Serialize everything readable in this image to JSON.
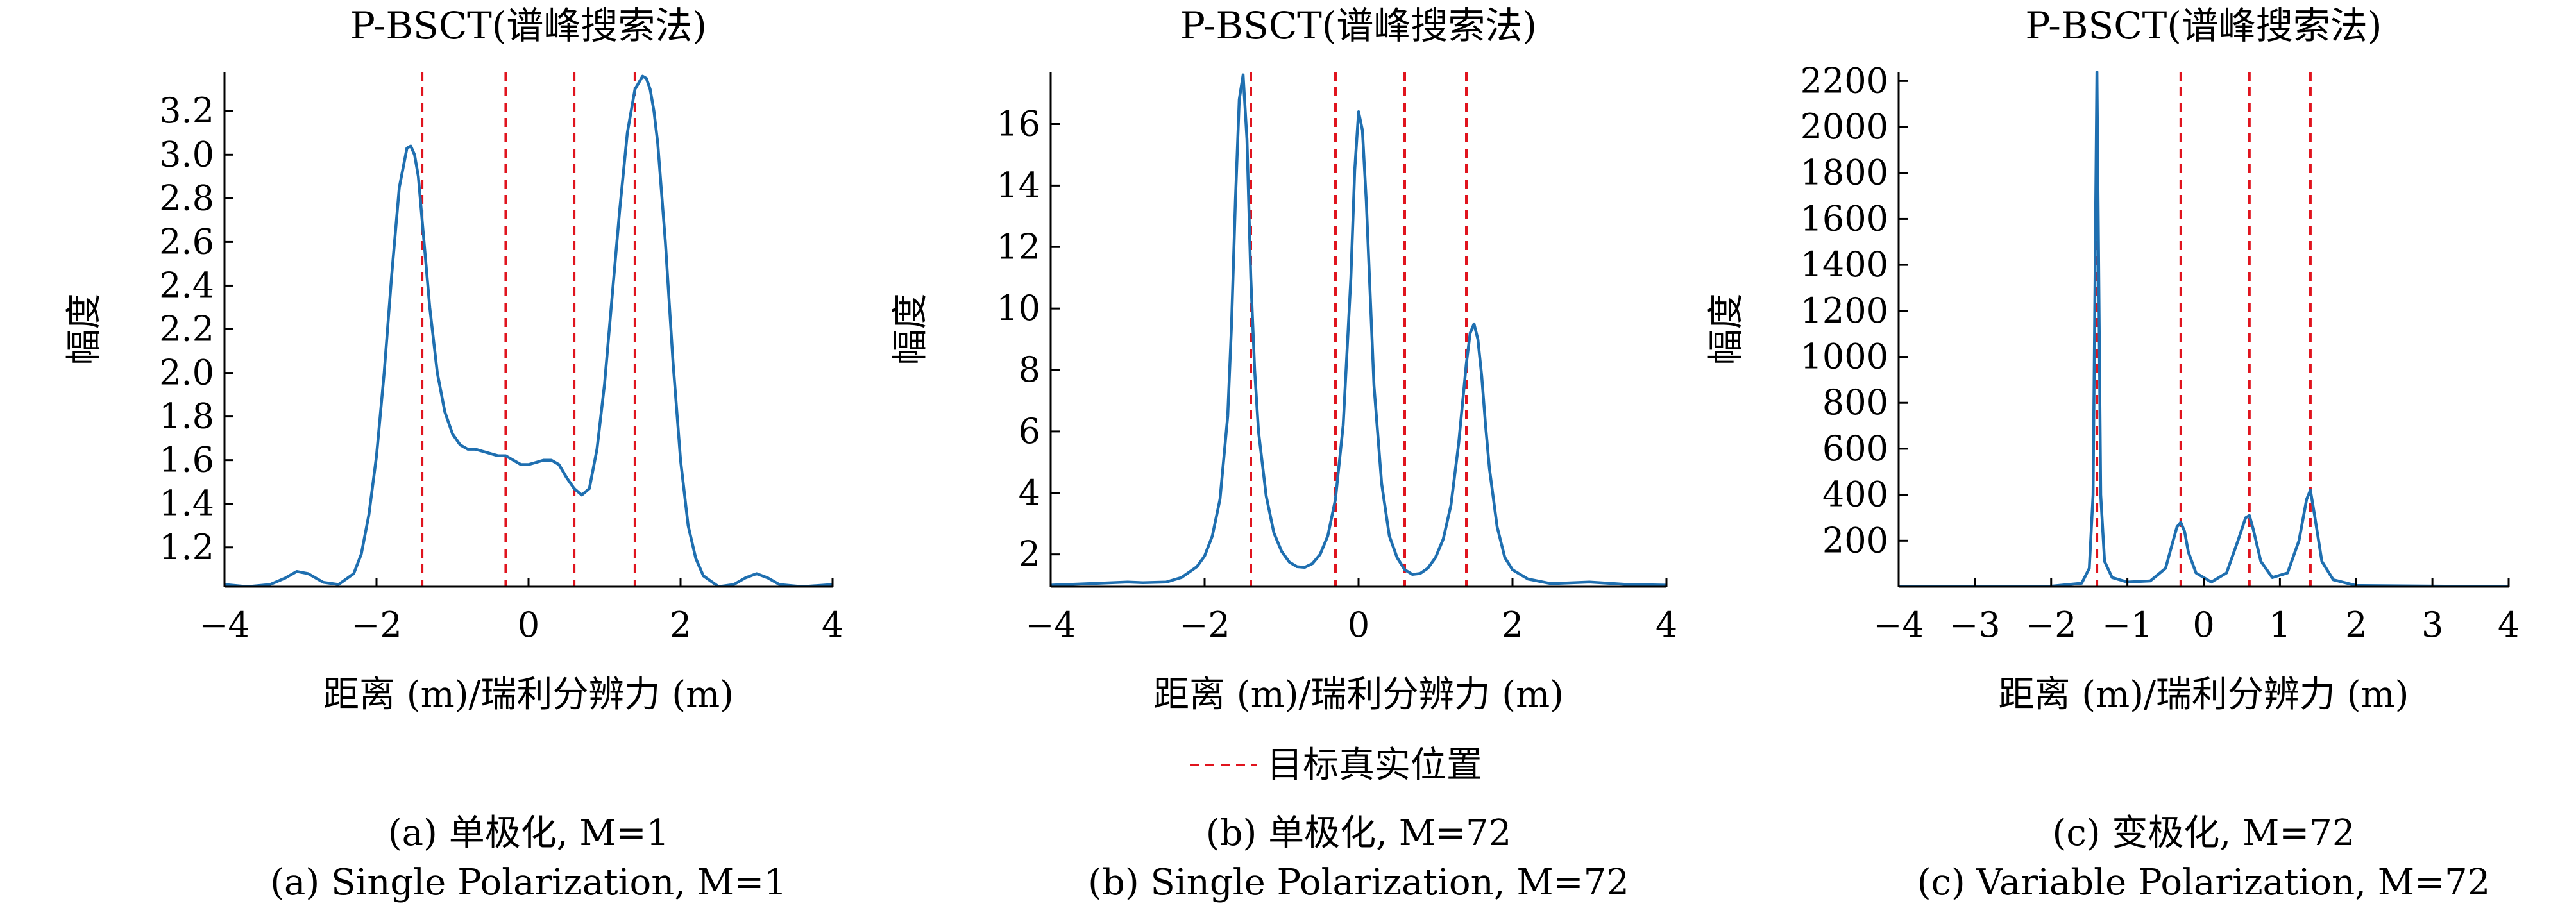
{
  "legend": {
    "label": "目标真实位置",
    "color": "#e0141e"
  },
  "colors": {
    "curve": "#1f6fb0",
    "truth": "#e0141e",
    "axis": "#000000"
  },
  "chart_data": [
    {
      "type": "line",
      "title": "P-BSCT(谱峰搜索法)",
      "xlabel": "距离 (m)/瑞利分辨力 (m)",
      "ylabel": "幅度",
      "xlim": [
        -4,
        4
      ],
      "ylim": [
        1.02,
        3.38
      ],
      "xticks": [
        "−4",
        "−2",
        "0",
        "2",
        "4"
      ],
      "xtick_values": [
        -4,
        -2,
        0,
        2,
        4
      ],
      "yticks": [
        "1.2",
        "1.4",
        "1.6",
        "1.8",
        "2.0",
        "2.2",
        "2.4",
        "2.6",
        "2.8",
        "3.0",
        "3.2"
      ],
      "ytick_values": [
        1.2,
        1.4,
        1.6,
        1.8,
        2.0,
        2.2,
        2.4,
        2.6,
        2.8,
        3.0,
        3.2
      ],
      "caption_cn": "(a) 单极化, M=1",
      "caption_en": "(a) Single Polarization, M=1",
      "target_positions": [
        -1.4,
        -0.3,
        0.6,
        1.4
      ],
      "series": [
        {
          "x": [
            -4,
            -3.7,
            -3.4,
            -3.2,
            -3.05,
            -2.9,
            -2.7,
            -2.5,
            -2.3,
            -2.2,
            -2.1,
            -2.0,
            -1.9,
            -1.8,
            -1.7,
            -1.6,
            -1.55,
            -1.5,
            -1.45,
            -1.4,
            -1.3,
            -1.2,
            -1.1,
            -1.0,
            -0.9,
            -0.8,
            -0.7,
            -0.6,
            -0.5,
            -0.4,
            -0.3,
            -0.2,
            -0.1,
            0,
            0.1,
            0.2,
            0.3,
            0.4,
            0.5,
            0.6,
            0.7,
            0.8,
            0.9,
            1.0,
            1.1,
            1.2,
            1.3,
            1.4,
            1.5,
            1.55,
            1.6,
            1.65,
            1.7,
            1.8,
            1.9,
            2.0,
            2.1,
            2.2,
            2.3,
            2.5,
            2.7,
            2.85,
            3.0,
            3.15,
            3.3,
            3.6,
            4.0
          ],
          "y": [
            1.03,
            1.02,
            1.03,
            1.06,
            1.09,
            1.08,
            1.04,
            1.03,
            1.08,
            1.17,
            1.35,
            1.62,
            2.0,
            2.45,
            2.85,
            3.03,
            3.04,
            3.0,
            2.9,
            2.7,
            2.3,
            2.0,
            1.82,
            1.72,
            1.67,
            1.65,
            1.65,
            1.64,
            1.63,
            1.62,
            1.62,
            1.6,
            1.58,
            1.58,
            1.59,
            1.6,
            1.6,
            1.58,
            1.52,
            1.47,
            1.44,
            1.47,
            1.65,
            1.95,
            2.35,
            2.75,
            3.1,
            3.3,
            3.36,
            3.35,
            3.3,
            3.2,
            3.05,
            2.6,
            2.05,
            1.6,
            1.3,
            1.15,
            1.07,
            1.02,
            1.03,
            1.06,
            1.08,
            1.06,
            1.03,
            1.02,
            1.03
          ]
        }
      ]
    },
    {
      "type": "line",
      "title": "P-BSCT(谱峰搜索法)",
      "xlabel": "距离 (m)/瑞利分辨力 (m)",
      "ylabel": "幅度",
      "xlim": [
        -4,
        4
      ],
      "ylim": [
        0.95,
        17.7
      ],
      "xticks": [
        "−4",
        "−2",
        "0",
        "2",
        "4"
      ],
      "xtick_values": [
        -4,
        -2,
        0,
        2,
        4
      ],
      "yticks": [
        "2",
        "4",
        "6",
        "8",
        "10",
        "12",
        "14",
        "16"
      ],
      "ytick_values": [
        2,
        4,
        6,
        8,
        10,
        12,
        14,
        16
      ],
      "caption_cn": "(b) 单极化, M=72",
      "caption_en": "(b) Single Polarization, M=72",
      "target_positions": [
        -1.4,
        -0.3,
        0.6,
        1.4
      ],
      "series": [
        {
          "x": [
            -4,
            -3.5,
            -3.0,
            -2.8,
            -2.5,
            -2.3,
            -2.1,
            -2.0,
            -1.9,
            -1.8,
            -1.7,
            -1.65,
            -1.6,
            -1.55,
            -1.5,
            -1.45,
            -1.4,
            -1.35,
            -1.3,
            -1.2,
            -1.1,
            -1.0,
            -0.9,
            -0.8,
            -0.7,
            -0.6,
            -0.5,
            -0.4,
            -0.3,
            -0.2,
            -0.1,
            -0.05,
            0,
            0.05,
            0.1,
            0.15,
            0.2,
            0.3,
            0.4,
            0.5,
            0.6,
            0.7,
            0.8,
            0.9,
            1.0,
            1.1,
            1.2,
            1.3,
            1.4,
            1.45,
            1.5,
            1.55,
            1.6,
            1.65,
            1.7,
            1.8,
            1.9,
            2.0,
            2.2,
            2.5,
            3.0,
            3.5,
            4.0
          ],
          "y": [
            1.0,
            1.05,
            1.1,
            1.08,
            1.1,
            1.25,
            1.6,
            1.95,
            2.6,
            3.8,
            6.5,
            9.5,
            13.5,
            16.8,
            17.6,
            15.5,
            11.0,
            8.0,
            6.0,
            3.9,
            2.7,
            2.1,
            1.75,
            1.6,
            1.58,
            1.7,
            2.0,
            2.6,
            3.8,
            6.2,
            11.0,
            14.5,
            16.4,
            15.8,
            13.5,
            10.5,
            7.5,
            4.3,
            2.6,
            1.9,
            1.5,
            1.35,
            1.38,
            1.55,
            1.9,
            2.5,
            3.6,
            5.6,
            8.2,
            9.2,
            9.5,
            9.0,
            7.8,
            6.2,
            4.8,
            2.9,
            1.9,
            1.5,
            1.2,
            1.05,
            1.1,
            1.02,
            1.0
          ]
        }
      ]
    },
    {
      "type": "line",
      "title": "P-BSCT(谱峰搜索法)",
      "xlabel": "距离 (m)/瑞利分辨力 (m)",
      "ylabel": "幅度",
      "xlim": [
        -4,
        4
      ],
      "ylim": [
        0,
        2240
      ],
      "xticks": [
        "−4",
        "−3",
        "−2",
        "−1",
        "0",
        "1",
        "2",
        "3",
        "4"
      ],
      "xtick_values": [
        -4,
        -3,
        -2,
        -1,
        0,
        1,
        2,
        3,
        4
      ],
      "yticks": [
        "200",
        "400",
        "600",
        "800",
        "1000",
        "1200",
        "1400",
        "1600",
        "1800",
        "2000",
        "2200"
      ],
      "ytick_values": [
        200,
        400,
        600,
        800,
        1000,
        1200,
        1400,
        1600,
        1800,
        2000,
        2200
      ],
      "caption_cn": "(c) 变极化, M=72",
      "caption_en": "(c) Variable Polarization, M=72",
      "target_positions": [
        -1.4,
        -0.3,
        0.6,
        1.4
      ],
      "series": [
        {
          "x": [
            -4,
            -2.0,
            -1.6,
            -1.5,
            -1.45,
            -1.42,
            -1.4,
            -1.38,
            -1.35,
            -1.3,
            -1.2,
            -1.0,
            -0.7,
            -0.5,
            -0.4,
            -0.35,
            -0.3,
            -0.25,
            -0.2,
            -0.1,
            0.1,
            0.3,
            0.45,
            0.55,
            0.6,
            0.65,
            0.75,
            0.9,
            1.1,
            1.25,
            1.35,
            1.4,
            1.45,
            1.55,
            1.7,
            2.0,
            4.0
          ],
          "y": [
            0,
            2,
            15,
            80,
            400,
            1500,
            2240,
            1500,
            400,
            110,
            40,
            20,
            25,
            80,
            200,
            260,
            280,
            240,
            150,
            60,
            20,
            60,
            200,
            300,
            310,
            250,
            110,
            40,
            60,
            200,
            380,
            420,
            320,
            110,
            30,
            5,
            0
          ]
        }
      ]
    }
  ]
}
